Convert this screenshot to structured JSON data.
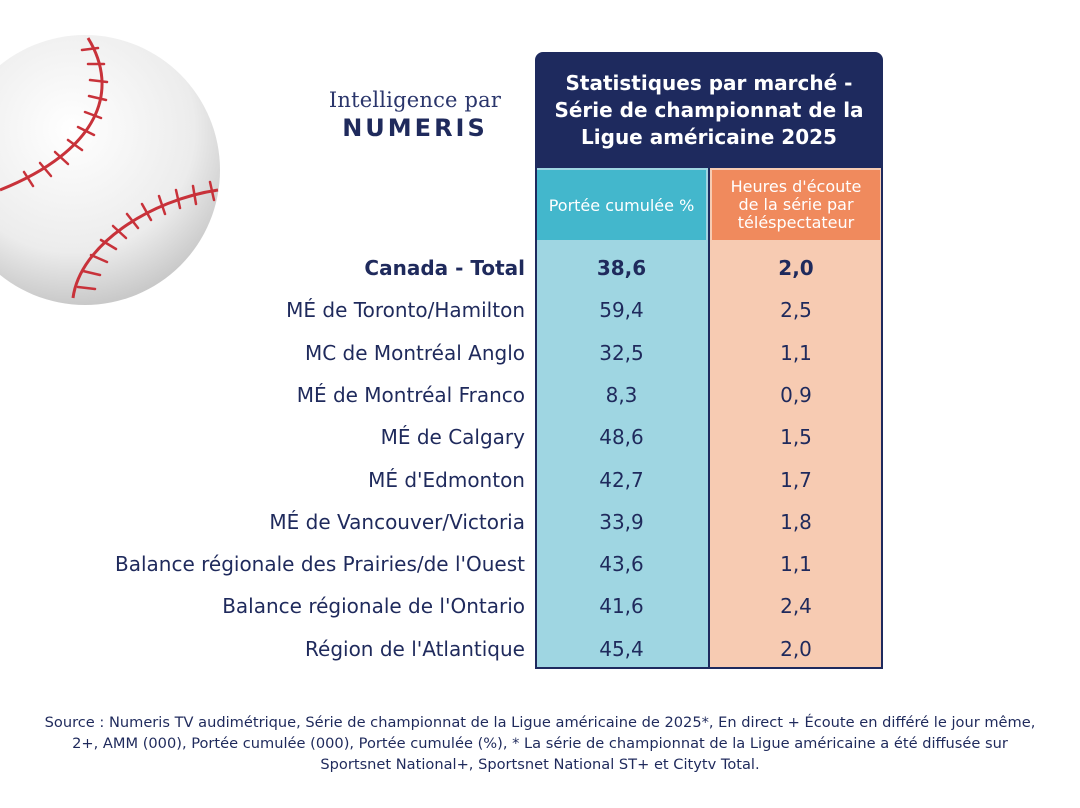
{
  "brand": {
    "line1": "Intelligence par",
    "line2": "NUMERIS"
  },
  "chart_data": {
    "type": "table",
    "title": "Statistiques par marché - Série de championnat de la Ligue américaine 2025",
    "columns": [
      "Portée cumulée %",
      "Heures d'écoute de la série par téléspectateur"
    ],
    "rows": [
      {
        "label": "Canada - Total",
        "reach": "38,6",
        "hours": "2,0",
        "bold": true
      },
      {
        "label": "MÉ de Toronto/Hamilton",
        "reach": "59,4",
        "hours": "2,5"
      },
      {
        "label": "MC de Montréal  Anglo",
        "reach": "32,5",
        "hours": "1,1"
      },
      {
        "label": "MÉ de Montréal Franco",
        "reach": "8,3",
        "hours": "0,9"
      },
      {
        "label": "MÉ de Calgary",
        "reach": "48,6",
        "hours": "1,5"
      },
      {
        "label": "MÉ d'Edmonton",
        "reach": "42,7",
        "hours": "1,7"
      },
      {
        "label": "MÉ de Vancouver/Victoria",
        "reach": "33,9",
        "hours": "1,8"
      },
      {
        "label": "Balance régionale des Prairies/de l'Ouest",
        "reach": "43,6",
        "hours": "1,1"
      },
      {
        "label": "Balance régionale de l'Ontario",
        "reach": "41,6",
        "hours": "2,4"
      },
      {
        "label": "Région de l'Atlantique",
        "reach": "45,4",
        "hours": "2,0"
      }
    ],
    "colors": {
      "header": "#1e2a5e",
      "reach_header": "#43b7cc",
      "reach_cells": "#9fd6e2",
      "hours_header": "#f08a5d",
      "hours_cells": "#f7cbb2"
    }
  },
  "source": "Source : Numeris TV audimétrique, Série de championnat de la Ligue américaine de 2025*, En direct + Écoute en différé le jour même, 2+, AMM (000), Portée cumulée (000), Portée cumulée (%), * La série de championnat de la Ligue américaine a été diffusée sur Sportsnet National+, Sportsnet National ST+ et Citytv Total.",
  "icons": {
    "decoration": "baseball-icon"
  }
}
